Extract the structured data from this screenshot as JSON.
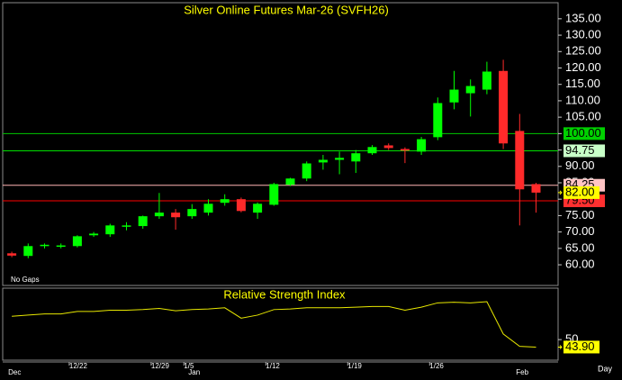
{
  "chart_data": [
    {
      "type": "candlestick",
      "title": "Silver Online Futures Mar-26 (SVFH26)",
      "categories": [
        null,
        null,
        null,
        null,
        "12/22",
        null,
        null,
        null,
        null,
        "12/29",
        null,
        "1/5",
        null,
        null,
        null,
        null,
        "1/12",
        null,
        null,
        null,
        null,
        "1/19",
        null,
        null,
        null,
        null,
        "1/26",
        null,
        null,
        null,
        null,
        null,
        null
      ],
      "month_labels": [
        "Dec",
        null,
        null,
        null,
        null,
        null,
        null,
        null,
        null,
        null,
        null,
        "Jan",
        null,
        null,
        null,
        null,
        null,
        null,
        null,
        null,
        null,
        null,
        null,
        null,
        null,
        null,
        null,
        null,
        null,
        null,
        null,
        "Feb",
        null
      ],
      "open": [
        63.5,
        62.7,
        65.8,
        65.7,
        65.7,
        69,
        69.3,
        71.6,
        71.8,
        74.8,
        75.9,
        74.8,
        75.9,
        78.9,
        80,
        75.9,
        78.3,
        84.4,
        86.3,
        91.2,
        92,
        91.5,
        94,
        96.4,
        95.3,
        94.5,
        98.9,
        109.5,
        112.3,
        113.4,
        119.1,
        100.8,
        84.6
      ],
      "high": [
        64,
        66.5,
        66.5,
        66.5,
        69,
        70,
        72.5,
        73,
        75,
        81.9,
        77,
        78.5,
        80,
        81.5,
        80.5,
        79,
        85,
        86.5,
        91.5,
        93.5,
        94.5,
        95,
        96.5,
        97,
        95.8,
        99,
        111,
        119.1,
        116.5,
        121.9,
        122.5,
        106,
        85
      ],
      "low": [
        62.3,
        62,
        65,
        65,
        65.3,
        68.5,
        68.5,
        70.5,
        71,
        74,
        70.7,
        74,
        75,
        78,
        76,
        74,
        78,
        84,
        85.5,
        89,
        87.6,
        88,
        93.5,
        95,
        91,
        93.5,
        98,
        107.4,
        105.2,
        112,
        95.3,
        72,
        75.9
      ],
      "close": [
        62.8,
        65.7,
        66.1,
        65.9,
        68.7,
        69.5,
        72,
        72,
        74.8,
        75.9,
        74.5,
        77,
        78.6,
        80,
        76.4,
        78.6,
        84.6,
        86.3,
        90.9,
        92,
        92.6,
        94,
        95.9,
        95.6,
        94.8,
        98.3,
        109.3,
        113.4,
        114.5,
        118.9,
        97,
        83,
        82
      ],
      "up_color": "#00ff00",
      "down_color": "#ff2a2a",
      "ylim": [
        53.7,
        139.9
      ],
      "yticks": [
        {
          "value": 60,
          "label": "60.00"
        },
        {
          "value": 65,
          "label": "65.00"
        },
        {
          "value": 70,
          "label": "70.00"
        },
        {
          "value": 75,
          "label": "75.00"
        },
        {
          "value": 80,
          "label": "80.00"
        },
        {
          "value": 85,
          "label": "85.00"
        },
        {
          "value": 90,
          "label": "90.00"
        },
        {
          "value": 95,
          "label": "95.00"
        },
        {
          "value": 100,
          "label": "100.00"
        },
        {
          "value": 105,
          "label": "105.00"
        },
        {
          "value": 110,
          "label": "110.00"
        },
        {
          "value": 115,
          "label": "115.00"
        },
        {
          "value": 120,
          "label": "120.00"
        },
        {
          "value": 125,
          "label": "125.00"
        },
        {
          "value": 130,
          "label": "130.00"
        },
        {
          "value": 135,
          "label": "135.00"
        }
      ],
      "levels": [
        {
          "value": 100,
          "label": "100.00",
          "color": "#00c800",
          "label_color": "#00d000"
        },
        {
          "value": 94.75,
          "label": "94.75",
          "color": "#00e000",
          "label_color": "#c8ffc8"
        },
        {
          "value": 84.25,
          "label": "84.25",
          "color": "#ffb4b4",
          "label_color": "#ffc4c4"
        },
        {
          "value": 79.5,
          "label": "79.50",
          "color": "#ff0000",
          "label_color": "#ff3030"
        }
      ],
      "last_price": {
        "value": 82,
        "label": "82.00",
        "color": "#ffff00"
      },
      "note": "No Gaps",
      "period": "Day"
    },
    {
      "type": "line",
      "title": "Relative Strength Index",
      "values": [
        69,
        70,
        71,
        71,
        73,
        73,
        74,
        74,
        74.5,
        75.5,
        73.5,
        74.5,
        75,
        76,
        67.5,
        70,
        74.5,
        75,
        76,
        76,
        76,
        76.5,
        77,
        77,
        74,
        76.5,
        80,
        80.5,
        80,
        81,
        54.6,
        44.5,
        43.9
      ],
      "color": "#e8e800",
      "ylim": [
        33.2,
        92
      ],
      "yticks": [
        50
      ],
      "last_value": {
        "value": 43.9,
        "label": "43.90",
        "color": "#ffff00"
      }
    }
  ]
}
